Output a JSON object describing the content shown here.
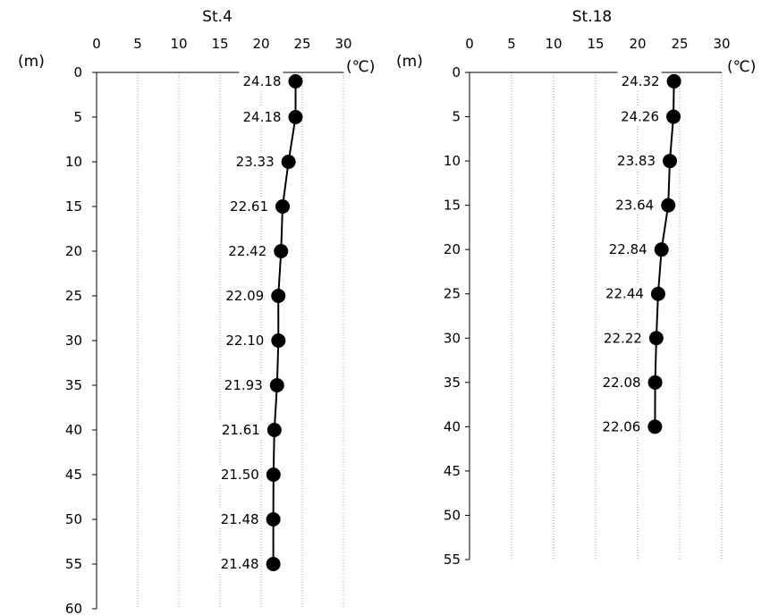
{
  "chart_data": [
    {
      "type": "line",
      "title": "St.4",
      "xlabel": "(℃)",
      "ylabel": "(m)",
      "x_ticks": [
        "0",
        "5",
        "10",
        "15",
        "20",
        "25",
        "30"
      ],
      "y_ticks": [
        "0",
        "5",
        "10",
        "15",
        "20",
        "25",
        "30",
        "35",
        "40",
        "45",
        "50",
        "55",
        "60"
      ],
      "xlim": [
        0,
        30
      ],
      "ylim": [
        0,
        60
      ],
      "y_inverted": true,
      "x_axis_position": "top",
      "grid": "vertical",
      "depth": [
        1,
        5,
        10,
        15,
        20,
        25,
        30,
        35,
        40,
        45,
        50,
        55
      ],
      "values": [
        24.18,
        24.18,
        23.33,
        22.61,
        22.42,
        22.09,
        22.1,
        21.93,
        21.61,
        21.5,
        21.48,
        21.48
      ],
      "labels": [
        "24.18",
        "24.18",
        "23.33",
        "22.61",
        "22.42",
        "22.09",
        "22.10",
        "21.93",
        "21.61",
        "21.50",
        "21.48",
        "21.48"
      ]
    },
    {
      "type": "line",
      "title": "St.18",
      "xlabel": "(℃)",
      "ylabel": "(m)",
      "x_ticks": [
        "0",
        "5",
        "10",
        "15",
        "20",
        "25",
        "30"
      ],
      "y_ticks": [
        "0",
        "5",
        "10",
        "15",
        "20",
        "25",
        "30",
        "35",
        "40",
        "45",
        "50",
        "55"
      ],
      "xlim": [
        0,
        30
      ],
      "ylim": [
        0,
        55
      ],
      "y_inverted": true,
      "x_axis_position": "top",
      "grid": "vertical",
      "depth": [
        1,
        5,
        10,
        15,
        20,
        25,
        30,
        35,
        40
      ],
      "values": [
        24.32,
        24.26,
        23.83,
        23.64,
        22.84,
        22.44,
        22.22,
        22.08,
        22.06
      ],
      "labels": [
        "24.32",
        "24.26",
        "23.83",
        "23.64",
        "22.84",
        "22.44",
        "22.22",
        "22.08",
        "22.06"
      ]
    }
  ]
}
